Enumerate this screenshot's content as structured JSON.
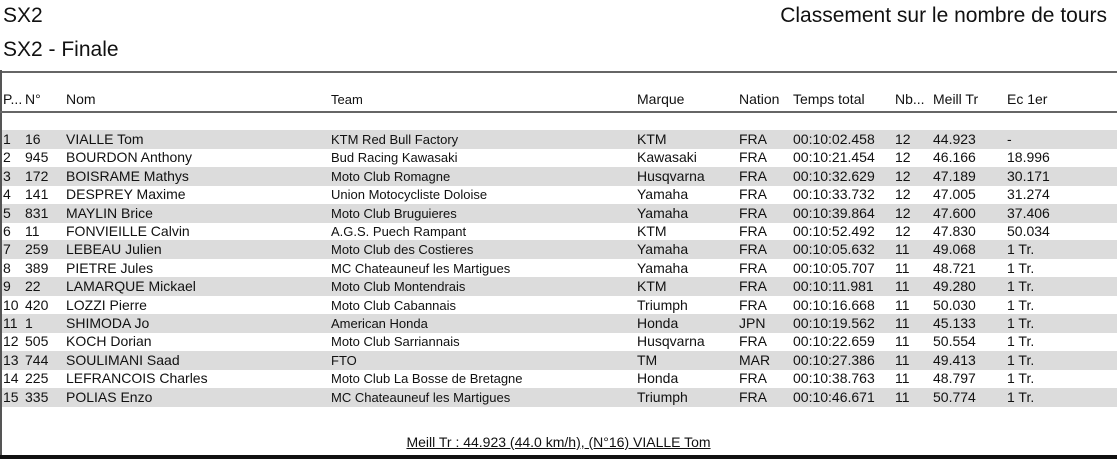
{
  "header": {
    "category": "SX2",
    "event": "SX2 - Finale",
    "ranking_type": "Classement sur le nombre de tours"
  },
  "columns": [
    "P...",
    "N°",
    "Nom",
    "Team",
    "Marque",
    "Nation",
    "Temps total",
    "Nb...",
    "Meill Tr",
    "Ec 1er"
  ],
  "rows": [
    [
      "1",
      "16",
      "VIALLE Tom",
      "KTM Red Bull Factory",
      "KTM",
      "FRA",
      "00:10:02.458",
      "12",
      "44.923",
      "-"
    ],
    [
      "2",
      "945",
      "BOURDON Anthony",
      "Bud Racing Kawasaki",
      "Kawasaki",
      "FRA",
      "00:10:21.454",
      "12",
      "46.166",
      "18.996"
    ],
    [
      "3",
      "172",
      "BOISRAME Mathys",
      "Moto Club Romagne",
      "Husqvarna",
      "FRA",
      "00:10:32.629",
      "12",
      "47.189",
      "30.171"
    ],
    [
      "4",
      "141",
      "DESPREY Maxime",
      "Union Motocycliste Doloise",
      "Yamaha",
      "FRA",
      "00:10:33.732",
      "12",
      "47.005",
      "31.274"
    ],
    [
      "5",
      "831",
      "MAYLIN Brice",
      "Moto Club Bruguieres",
      "Yamaha",
      "FRA",
      "00:10:39.864",
      "12",
      "47.600",
      "37.406"
    ],
    [
      "6",
      "11",
      "FONVIEILLE Calvin",
      "A.G.S. Puech Rampant",
      "KTM",
      "FRA",
      "00:10:52.492",
      "12",
      "47.830",
      "50.034"
    ],
    [
      "7",
      "259",
      "LEBEAU Julien",
      "Moto Club des Costieres",
      "Yamaha",
      "FRA",
      "00:10:05.632",
      "11",
      "49.068",
      "1 Tr."
    ],
    [
      "8",
      "389",
      "PIETRE Jules",
      "MC Chateauneuf les Martigues",
      "Yamaha",
      "FRA",
      "00:10:05.707",
      "11",
      "48.721",
      "1 Tr."
    ],
    [
      "9",
      "22",
      "LAMARQUE Mickael",
      "Moto Club Montendrais",
      "KTM",
      "FRA",
      "00:10:11.981",
      "11",
      "49.280",
      "1 Tr."
    ],
    [
      "10",
      "420",
      "LOZZI Pierre",
      "Moto Club Cabannais",
      "Triumph",
      "FRA",
      "00:10:16.668",
      "11",
      "50.030",
      "1 Tr."
    ],
    [
      "11",
      "1",
      "SHIMODA  Jo",
      "American Honda",
      "Honda",
      "JPN",
      "00:10:19.562",
      "11",
      "45.133",
      "1 Tr."
    ],
    [
      "12",
      "505",
      "KOCH Dorian",
      "Moto Club Sarriannais",
      "Husqvarna",
      "FRA",
      "00:10:22.659",
      "11",
      "50.554",
      "1 Tr."
    ],
    [
      "13",
      "744",
      "SOULIMANI Saad",
      "FTO",
      "TM",
      "MAR",
      "00:10:27.386",
      "11",
      "49.413",
      "1 Tr."
    ],
    [
      "14",
      "225",
      "LEFRANCOIS Charles",
      "Moto Club La Bosse de Bretagne",
      "Honda",
      "FRA",
      "00:10:38.763",
      "11",
      "48.797",
      "1 Tr."
    ],
    [
      "15",
      "335",
      "POLIAS Enzo",
      "MC Chateauneuf les Martigues",
      "Triumph",
      "FRA",
      "00:10:46.671",
      "11",
      "50.774",
      "1 Tr."
    ]
  ],
  "footer": "Meill Tr : 44.923 (44.0 km/h), (N°16) VIALLE Tom"
}
